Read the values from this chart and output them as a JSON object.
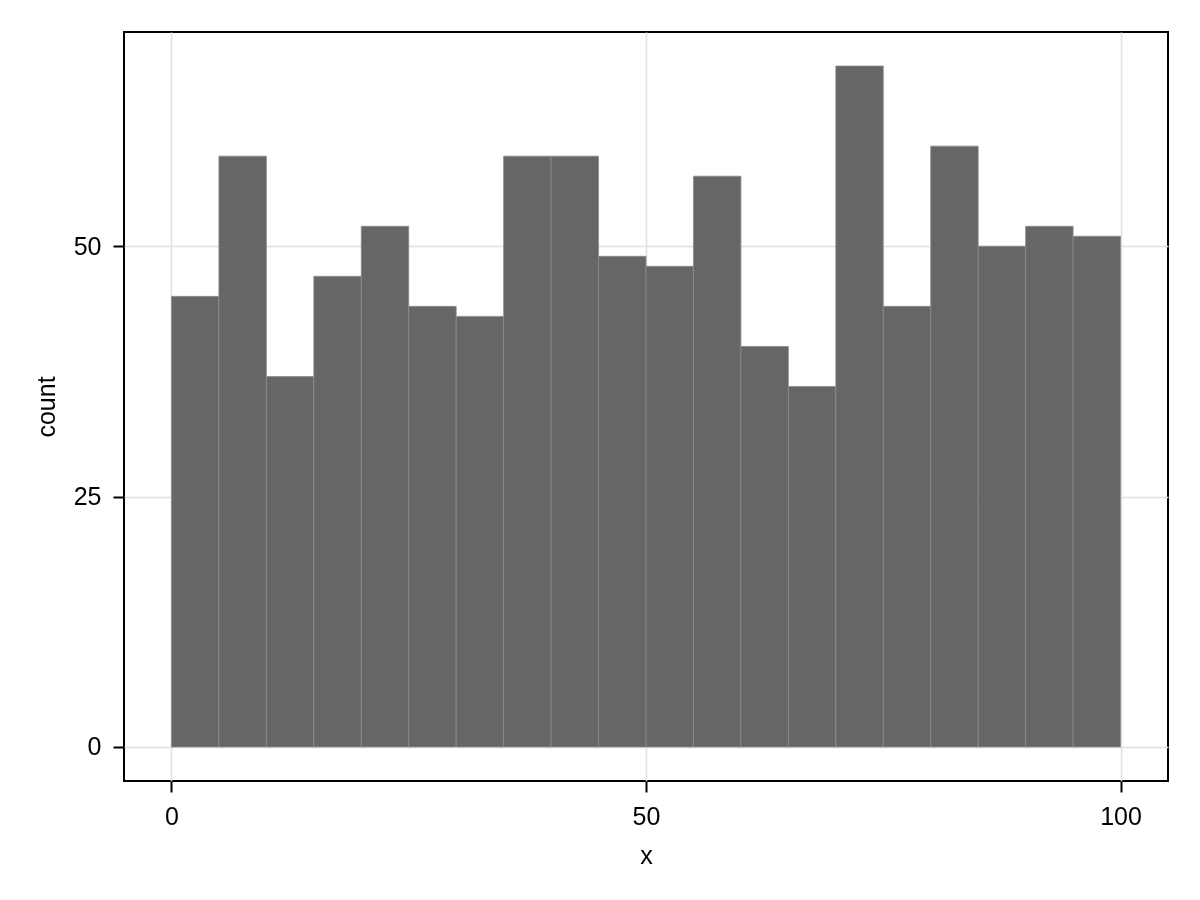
{
  "chart_data": {
    "type": "histogram",
    "xlabel": "x",
    "ylabel": "count",
    "bins": [
      0,
      5,
      10,
      15,
      20,
      25,
      30,
      35,
      40,
      45,
      50,
      55,
      60,
      65,
      70,
      75,
      80,
      85,
      90,
      95,
      100
    ],
    "values": [
      45,
      59,
      37,
      47,
      52,
      44,
      43,
      59,
      59,
      49,
      48,
      57,
      40,
      36,
      68,
      44,
      60,
      50,
      52,
      51
    ],
    "color": "#666666",
    "xlim": [
      -5,
      105
    ],
    "ylim": [
      -3.4,
      71.4
    ],
    "xticks": [
      0,
      50,
      100
    ],
    "yticks": [
      0,
      25,
      50
    ],
    "grid": true
  }
}
